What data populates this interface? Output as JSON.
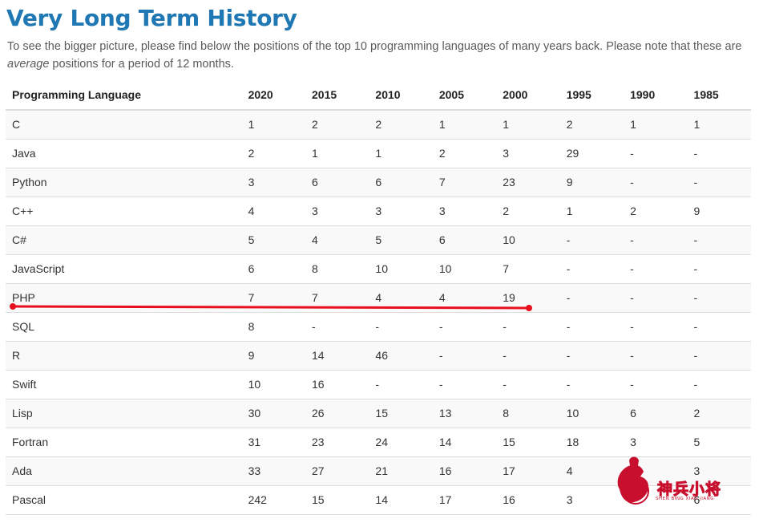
{
  "page": {
    "title": "Very Long Term History",
    "intro_before": "To see the bigger picture, please find below the positions of the top 10 programming languages of many years back. Please note that these are ",
    "intro_emphasis": "average",
    "intro_after": " positions for a period of 12 months."
  },
  "table": {
    "headers": [
      "Programming Language",
      "2020",
      "2015",
      "2010",
      "2005",
      "2000",
      "1995",
      "1990",
      "1985"
    ],
    "rows": [
      [
        "C",
        "1",
        "2",
        "2",
        "1",
        "1",
        "2",
        "1",
        "1"
      ],
      [
        "Java",
        "2",
        "1",
        "1",
        "2",
        "3",
        "29",
        "-",
        "-"
      ],
      [
        "Python",
        "3",
        "6",
        "6",
        "7",
        "23",
        "9",
        "-",
        "-"
      ],
      [
        "C++",
        "4",
        "3",
        "3",
        "3",
        "2",
        "1",
        "2",
        "9"
      ],
      [
        "C#",
        "5",
        "4",
        "5",
        "6",
        "10",
        "-",
        "-",
        "-"
      ],
      [
        "JavaScript",
        "6",
        "8",
        "10",
        "10",
        "7",
        "-",
        "-",
        "-"
      ],
      [
        "PHP",
        "7",
        "7",
        "4",
        "4",
        "19",
        "-",
        "-",
        "-"
      ],
      [
        "SQL",
        "8",
        "-",
        "-",
        "-",
        "-",
        "-",
        "-",
        "-"
      ],
      [
        "R",
        "9",
        "14",
        "46",
        "-",
        "-",
        "-",
        "-",
        "-"
      ],
      [
        "Swift",
        "10",
        "16",
        "-",
        "-",
        "-",
        "-",
        "-",
        "-"
      ],
      [
        "Lisp",
        "30",
        "26",
        "15",
        "13",
        "8",
        "10",
        "6",
        "2"
      ],
      [
        "Fortran",
        "31",
        "23",
        "24",
        "14",
        "15",
        "18",
        "3",
        "5"
      ],
      [
        "Ada",
        "33",
        "27",
        "21",
        "16",
        "17",
        "4",
        "",
        "3"
      ],
      [
        "Pascal",
        "242",
        "15",
        "14",
        "17",
        "16",
        "3",
        "",
        "6"
      ]
    ]
  },
  "annotation": {
    "color": "#e8101f"
  },
  "watermark": {
    "icon": "thumbs-up-logo-icon",
    "text": "神兵小将",
    "subtext": "SHEN BING XIAO JIANG",
    "color": "#c8102e"
  }
}
